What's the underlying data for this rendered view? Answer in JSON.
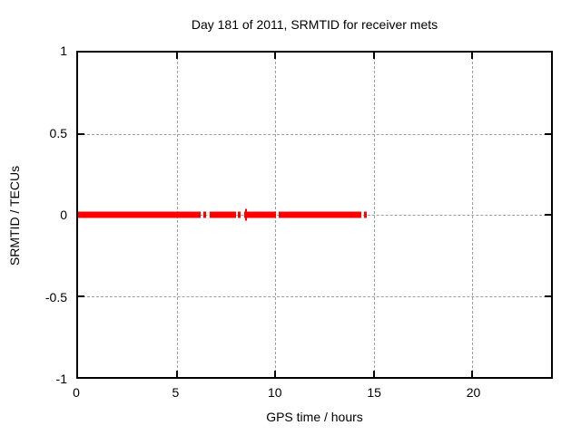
{
  "page": {
    "background": "#ffffff",
    "border_color": "#000000",
    "grid_color": "#9e9e9e"
  },
  "chart_data": {
    "type": "scatter",
    "title": "Day 181 of 2011, SRMTID for receiver mets",
    "xlabel": "GPS time / hours",
    "ylabel": "SRMTID / TECUs",
    "xlim": [
      0,
      24
    ],
    "ylim": [
      -1,
      1
    ],
    "xticks": [
      0,
      5,
      10,
      15,
      20
    ],
    "xtick_labels": [
      "0",
      "5",
      "10",
      "15",
      "20"
    ],
    "yticks": [
      -1,
      -0.5,
      0,
      0.5,
      1
    ],
    "ytick_labels": [
      "-1",
      "-0.5",
      "0",
      "0.5",
      "1"
    ],
    "grid": true,
    "legend": "none",
    "series": [
      {
        "name": "SRMTID",
        "color": "#ff0000",
        "y_value": 0,
        "segments_hours": [
          [
            0.0,
            6.2
          ],
          [
            6.35,
            6.5
          ],
          [
            6.7,
            8.0
          ],
          [
            8.1,
            8.25
          ],
          [
            8.45,
            10.05
          ],
          [
            10.2,
            14.35
          ],
          [
            14.5,
            14.65
          ]
        ],
        "plus_markers_x": [
          8.52
        ]
      }
    ]
  }
}
